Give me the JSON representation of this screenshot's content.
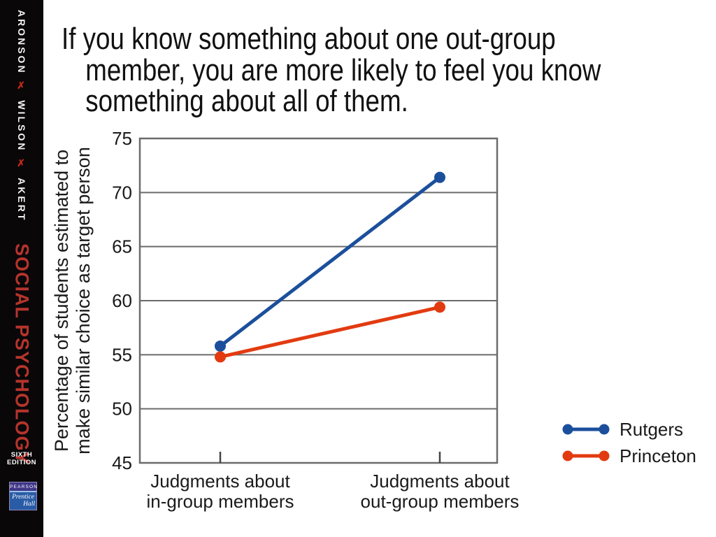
{
  "sidebar": {
    "authors": [
      "ARONSON",
      "WILSON",
      "AKERT"
    ],
    "separator": "✗",
    "book_title": "SOCIAL PSYCHOLOGY",
    "edition_lines": [
      "SIXTH",
      "EDITION"
    ],
    "publisher": {
      "name": "PEARSON",
      "imprint_lines": [
        "Prentice",
        "Hall"
      ]
    }
  },
  "title": {
    "lines": [
      "If you know something about one out-group",
      "member, you are more likely to feel you know",
      "something about all of them."
    ]
  },
  "chart_data": {
    "type": "line",
    "title": "",
    "xlabel": "",
    "ylabel_lines": [
      "Percentage of students estimated to",
      "make similar choice as target person"
    ],
    "categories": [
      [
        "Judgments about",
        "in-group members"
      ],
      [
        "Judgments about",
        "out-group members"
      ]
    ],
    "series": [
      {
        "name": "Rutgers",
        "color": "#1b4f9c",
        "values": [
          55.8,
          71.4
        ]
      },
      {
        "name": "Princeton",
        "color": "#e23b10",
        "values": [
          54.8,
          59.4
        ]
      }
    ],
    "ylim": [
      45,
      75
    ],
    "yticks": [
      45,
      50,
      55,
      60,
      65,
      70,
      75
    ],
    "grid": true,
    "axis_color": "#6b6b6b",
    "tick_color": "#444444",
    "legend_position": "right-bottom"
  }
}
